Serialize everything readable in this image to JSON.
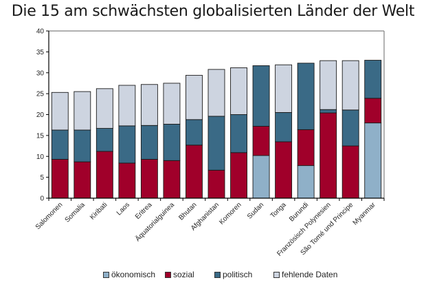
{
  "chart_data": {
    "type": "bar",
    "stacked": true,
    "title": "Die 15 am schwächsten globalisierten Länder der Welt",
    "xlabel": "",
    "ylabel": "",
    "ylim": [
      0,
      40
    ],
    "yticks": [
      0,
      5,
      10,
      15,
      20,
      25,
      30,
      35,
      40
    ],
    "grid": false,
    "legend_position": "bottom",
    "categories": [
      "Salomonen",
      "Somalia",
      "Kiribati",
      "Laos",
      "Eritrea",
      "Äquatorialguinea",
      "Bhutan",
      "Afghanistan",
      "Komoren",
      "Sudan",
      "Tonga",
      "Burundi",
      "Französisch Polynesien",
      "São Tomé und Principe",
      "Myanmar"
    ],
    "series": [
      {
        "name": "ökonomisch",
        "color": "#8fb0c8",
        "values": [
          0,
          0,
          0,
          0,
          0,
          0,
          0,
          0,
          0,
          10.2,
          0,
          7.8,
          0,
          0,
          18.0
        ]
      },
      {
        "name": "sozial",
        "color": "#a0002a",
        "values": [
          9.3,
          8.7,
          11.2,
          8.4,
          9.3,
          9.0,
          12.7,
          6.7,
          10.9,
          7.0,
          13.5,
          8.6,
          20.4,
          12.5,
          5.9
        ]
      },
      {
        "name": "politisch",
        "color": "#3a6a86",
        "values": [
          7.0,
          7.6,
          5.5,
          8.9,
          8.1,
          8.7,
          6.1,
          12.9,
          9.1,
          14.5,
          7.0,
          15.9,
          0.8,
          8.6,
          9.1
        ]
      },
      {
        "name": "fehlende Daten",
        "color": "#cdd4e0",
        "values": [
          9.0,
          9.2,
          9.5,
          9.7,
          9.8,
          9.8,
          10.6,
          11.2,
          11.2,
          0,
          11.4,
          0,
          11.7,
          11.8,
          0
        ]
      }
    ]
  }
}
